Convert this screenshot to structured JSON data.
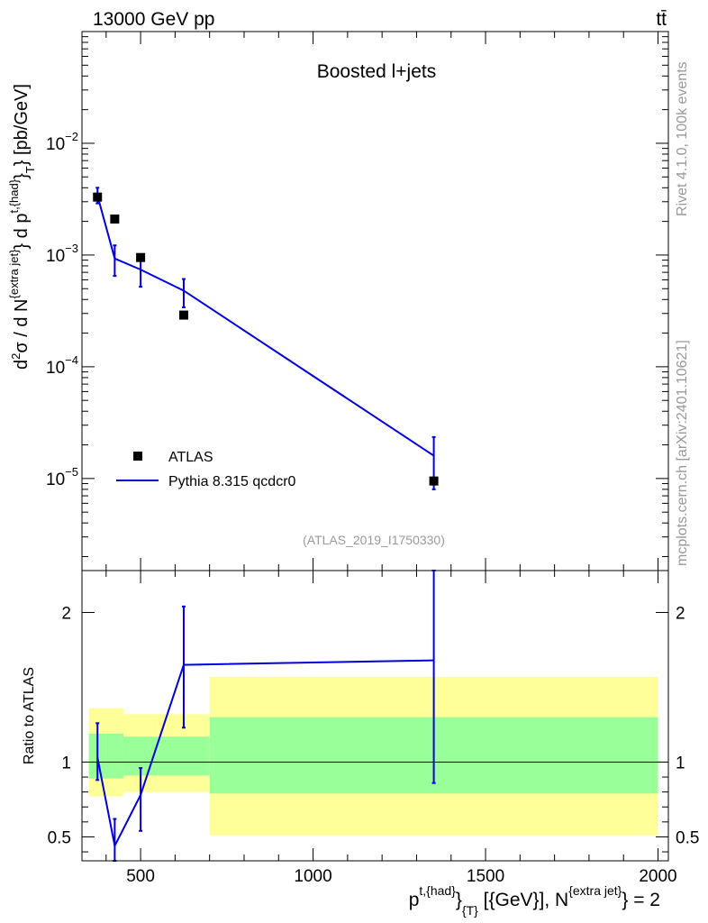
{
  "header": {
    "energy": "13000 GeV pp",
    "process": "tt̄"
  },
  "side_text": {
    "rivet": "Rivet 4.1.0,  100k events",
    "mcplots": "mcplots.cern.ch [arXiv:2401.10621]"
  },
  "colors": {
    "data": "#000000",
    "mc": "#0000dd",
    "band_outer": "#ffff99",
    "band_inner": "#99ff99",
    "label_gray": "#999999"
  },
  "chart_data": [
    {
      "type": "scatter",
      "scale": "log",
      "title": "Boosted l+jets",
      "analysis_tag": "(ATLAS_2019_I1750330)",
      "ylabel": "d²σ / d N{extra jet} d p^{t,{had}}_{T} [pb/GeV]",
      "xlim": [
        330,
        2030
      ],
      "ylim": [
        1.5e-06,
        0.1
      ],
      "y_ticks": [
        {
          "value": 0.01,
          "base": "10",
          "exp": "−2"
        },
        {
          "value": 0.001,
          "base": "10",
          "exp": "−3"
        },
        {
          "value": 0.0001,
          "base": "10",
          "exp": "−4"
        },
        {
          "value": 1e-05,
          "base": "10",
          "exp": "−5"
        }
      ],
      "legend": [
        "ATLAS",
        "Pythia 8.315 qcdcr0"
      ],
      "series": [
        {
          "name": "ATLAS",
          "style": "markers",
          "x": [
            375,
            425,
            500,
            625,
            1350
          ],
          "y": [
            0.0033,
            0.0021,
            0.00095,
            0.00029,
            9.5e-06
          ]
        },
        {
          "name": "Pythia 8.315 qcdcr0",
          "style": "line",
          "x": [
            375,
            425,
            500,
            625,
            1350
          ],
          "y": [
            0.0034,
            0.00093,
            0.00074,
            0.00048,
            1.6e-05
          ],
          "yerr_low": [
            0.0029,
            0.00065,
            0.00052,
            0.00034,
            8e-06
          ],
          "yerr_high": [
            0.004,
            0.00122,
            0.00096,
            0.00061,
            2.35e-05
          ]
        }
      ]
    },
    {
      "type": "line",
      "scale": "linear",
      "ylabel": "Ratio to ATLAS",
      "xlabel": "p^{t,{had}}_{T} [{GeV}], N^{extra jet} = 2",
      "xlim": [
        330,
        2030
      ],
      "ylim": [
        0.34,
        2.28
      ],
      "x_ticks": [
        500,
        1000,
        1500,
        2000
      ],
      "y_ticks": [
        0.5,
        1,
        2
      ],
      "bands": [
        {
          "xlow": 350,
          "xhigh": 400,
          "outer": [
            0.77,
            1.36
          ],
          "inner": [
            0.89,
            1.19
          ]
        },
        {
          "xlow": 400,
          "xhigh": 450,
          "outer": [
            0.77,
            1.36
          ],
          "inner": [
            0.89,
            1.19
          ]
        },
        {
          "xlow": 450,
          "xhigh": 550,
          "outer": [
            0.8,
            1.32
          ],
          "inner": [
            0.91,
            1.17
          ]
        },
        {
          "xlow": 550,
          "xhigh": 700,
          "outer": [
            0.8,
            1.32
          ],
          "inner": [
            0.91,
            1.17
          ]
        },
        {
          "xlow": 700,
          "xhigh": 2000,
          "outer": [
            0.51,
            1.57
          ],
          "inner": [
            0.79,
            1.3
          ]
        }
      ],
      "series": [
        {
          "name": "Pythia 8.315 qcdcr0 / ATLAS",
          "x": [
            375,
            425,
            500,
            625,
            1350
          ],
          "y": [
            1.03,
            0.44,
            0.78,
            1.65,
            1.68
          ],
          "yerr_low": [
            0.88,
            0.34,
            0.54,
            1.23,
            0.86
          ],
          "yerr_high": [
            1.26,
            0.62,
            0.96,
            2.04,
            2.28
          ]
        }
      ]
    }
  ]
}
